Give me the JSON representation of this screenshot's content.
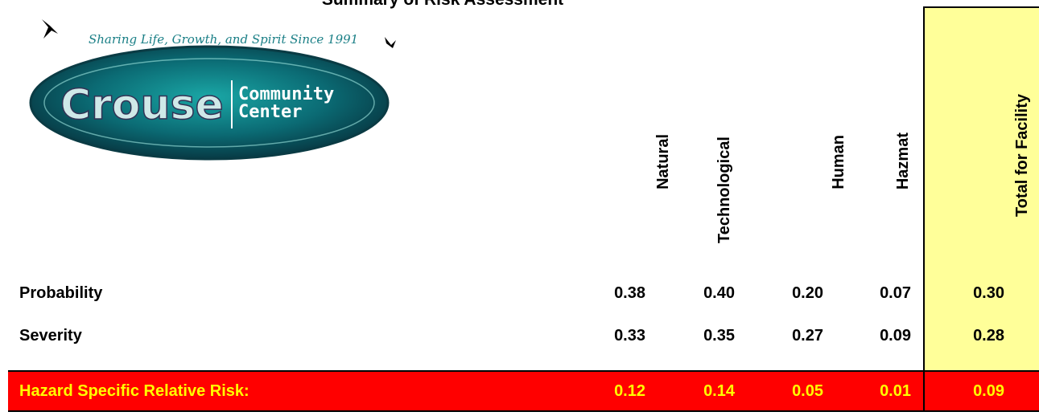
{
  "title": "Summary of Risk Assessment",
  "logo": {
    "tagline": "Sharing Life, Growth, and Spirit Since 1991",
    "name": "Crouse",
    "sub1": "Community",
    "sub2": "Center"
  },
  "columns": {
    "natural": "Natural",
    "technological": "Technological",
    "human": "Human",
    "hazmat": "Hazmat",
    "total": "Total for Facility"
  },
  "rows": {
    "probability": {
      "label": "Probability",
      "natural": "0.38",
      "technological": "0.40",
      "human": "0.20",
      "hazmat": "0.07",
      "total": "0.30"
    },
    "severity": {
      "label": "Severity",
      "natural": "0.33",
      "technological": "0.35",
      "human": "0.27",
      "hazmat": "0.09",
      "total": "0.28"
    },
    "risk": {
      "label": "Hazard Specific Relative Risk:",
      "natural": "0.12",
      "technological": "0.14",
      "human": "0.05",
      "hazmat": "0.01",
      "total": "0.09"
    }
  },
  "colors": {
    "risk_bg": "#ff0000",
    "risk_text": "#ffff00",
    "total_bg": "#ffff99"
  }
}
